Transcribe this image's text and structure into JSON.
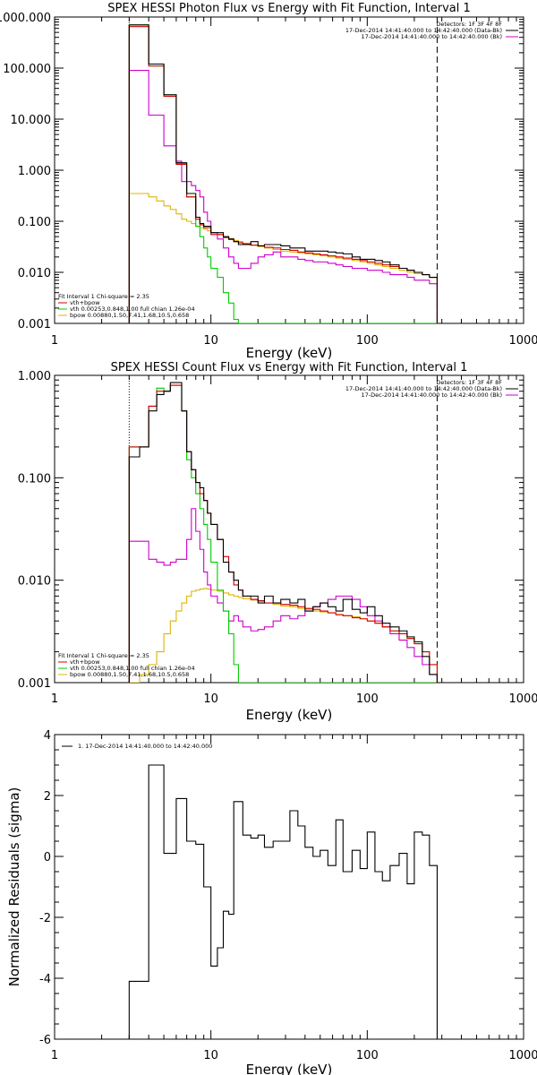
{
  "colors": {
    "total": "#000000",
    "model": "#d00000",
    "vth": "#00cc00",
    "bpow": "#e0b400",
    "bk": "#cc00cc"
  },
  "chart_data": [
    {
      "type": "line",
      "title": "SPEX HESSI Photon Flux vs Energy with Fit Function, Interval 1",
      "xlabel": "Energy (keV)",
      "ylabel": "",
      "xscale": "log",
      "yscale": "log",
      "xlim": [
        1,
        1000
      ],
      "ylim": [
        0.001,
        1000
      ],
      "xticks": [
        "1",
        "10",
        "100",
        "1000"
      ],
      "yticks": [
        "0.001",
        "0.010",
        "0.100",
        "1.000",
        "10.000",
        "100.000",
        "1000.000"
      ],
      "legend_top_right": [
        "Detectors: 1F 3F 4F 8F",
        "17-Dec-2014 14:41:40.000 to 14:42:40.000 (Data-Bk)",
        "17-Dec-2014 14:41:40.000 to 14:42:40.000 (Bk)"
      ],
      "legend_bottom_left": [
        "Fit Interval 1   Chi-square = 2.35",
        "vth+bpow",
        "vth 0.00253,0.848,1.00  full chian 1.26e-04",
        "bpow 0.00880,1.50,7.41,1.68,10.5,0.658"
      ],
      "vlines": [
        3,
        280
      ],
      "edges": [
        3,
        3.5,
        4,
        4.5,
        5,
        5.5,
        6,
        6.5,
        7,
        7.5,
        8,
        8.5,
        9,
        9.5,
        10,
        11,
        12,
        13,
        14,
        15,
        16,
        18,
        20,
        22,
        25,
        28,
        32,
        36,
        40,
        45,
        50,
        56,
        63,
        70,
        80,
        90,
        100,
        112,
        125,
        140,
        160,
        180,
        200,
        225,
        250,
        280
      ],
      "series": [
        {
          "name": "17-Dec-2014 14:41:40.000 to 14:42:40.000 (Data-Bk)",
          "color": "#000000",
          "values": [
            700,
            700,
            120,
            120,
            30,
            30,
            1.4,
            1.4,
            0.35,
            0.35,
            0.12,
            0.09,
            0.08,
            0.08,
            0.06,
            0.06,
            0.05,
            0.045,
            0.04,
            0.035,
            0.035,
            0.04,
            0.033,
            0.035,
            0.035,
            0.033,
            0.03,
            0.03,
            0.026,
            0.026,
            0.026,
            0.025,
            0.024,
            0.023,
            0.02,
            0.018,
            0.018,
            0.017,
            0.016,
            0.014,
            0.012,
            0.011,
            0.01,
            0.009,
            0.008
          ]
        },
        {
          "name": "vth+bpow",
          "color": "#d00000",
          "values": [
            650,
            650,
            110,
            110,
            28,
            28,
            1.3,
            1.3,
            0.3,
            0.3,
            0.11,
            0.085,
            0.075,
            0.075,
            0.055,
            0.055,
            0.048,
            0.044,
            0.04,
            0.038,
            0.036,
            0.034,
            0.033,
            0.031,
            0.03,
            0.028,
            0.027,
            0.025,
            0.024,
            0.023,
            0.022,
            0.021,
            0.02,
            0.019,
            0.018,
            0.017,
            0.016,
            0.015,
            0.014,
            0.013,
            0.012,
            0.011,
            0.01,
            0.009,
            0.008
          ]
        },
        {
          "name": "vth",
          "color": "#00cc00",
          "values": [
            700,
            700,
            120,
            120,
            30,
            30,
            1.35,
            1.35,
            0.3,
            0.3,
            0.08,
            0.05,
            0.03,
            0.02,
            0.012,
            0.008,
            0.004,
            0.0025,
            0.0012,
            0.001,
            0.001,
            0.001,
            0.001,
            0.001,
            0.001,
            0.001,
            0.001,
            0.001,
            0.001,
            0.001,
            0.001,
            0.001,
            0.001,
            0.001,
            0.001,
            0.001,
            0.001,
            0.001,
            0.001,
            0.001,
            0.001,
            0.001,
            0.001,
            0.001,
            0.001
          ]
        },
        {
          "name": "bpow",
          "color": "#e0b400",
          "values": [
            0.35,
            0.35,
            0.3,
            0.25,
            0.2,
            0.17,
            0.14,
            0.11,
            0.1,
            0.09,
            0.08,
            0.075,
            0.07,
            0.065,
            0.06,
            0.055,
            0.05,
            0.046,
            0.042,
            0.04,
            0.037,
            0.034,
            0.032,
            0.03,
            0.028,
            0.026,
            0.025,
            0.024,
            0.023,
            0.022,
            0.021,
            0.02,
            0.019,
            0.018,
            0.017,
            0.016,
            0.015,
            0.014,
            0.013,
            0.012,
            0.011,
            0.01,
            0.0095,
            0.009,
            0.008
          ]
        },
        {
          "name": "17-Dec-2014 14:41:40.000 to 14:42:40.000 (Bk)",
          "color": "#cc00cc",
          "values": [
            90,
            90,
            12,
            12,
            3,
            3,
            1.5,
            0.6,
            0.6,
            0.5,
            0.4,
            0.3,
            0.15,
            0.1,
            0.06,
            0.045,
            0.03,
            0.02,
            0.015,
            0.012,
            0.012,
            0.015,
            0.02,
            0.022,
            0.025,
            0.02,
            0.02,
            0.018,
            0.017,
            0.016,
            0.016,
            0.015,
            0.014,
            0.013,
            0.012,
            0.012,
            0.011,
            0.011,
            0.01,
            0.009,
            0.009,
            0.008,
            0.007,
            0.007,
            0.006
          ]
        }
      ]
    },
    {
      "type": "line",
      "title": "SPEX HESSI Count Flux vs Energy with Fit Function, Interval 1",
      "xlabel": "Energy (keV)",
      "ylabel": "",
      "xscale": "log",
      "yscale": "log",
      "xlim": [
        1,
        1000
      ],
      "ylim": [
        0.001,
        1
      ],
      "xticks": [
        "1",
        "10",
        "100",
        "1000"
      ],
      "yticks": [
        "0.001",
        "0.010",
        "0.100",
        "1.000"
      ],
      "legend_top_right": [
        "Detectors: 1F 3F 4F 8F",
        "17-Dec-2014 14:41:40.000 to 14:42:40.000 (Data-Bk)",
        "17-Dec-2014 14:41:40.000 to 14:42:40.000 (Bk)"
      ],
      "legend_bottom_left": [
        "Fit Interval 1   Chi-square = 2.35",
        "vth+bpow",
        "vth 0.00253,0.848,1.00  full chian 1.26e-04",
        "bpow 0.00880,1.50,7.41,1.68,10.5,0.658"
      ],
      "vlines": [
        3,
        280
      ],
      "edges": [
        3,
        3.5,
        4,
        4.5,
        5,
        5.5,
        6,
        6.5,
        7,
        7.5,
        8,
        8.5,
        9,
        9.5,
        10,
        11,
        12,
        13,
        14,
        15,
        16,
        18,
        20,
        22,
        25,
        28,
        32,
        36,
        40,
        45,
        50,
        56,
        63,
        70,
        80,
        90,
        100,
        112,
        125,
        140,
        160,
        180,
        200,
        225,
        250,
        280
      ],
      "series": [
        {
          "name": "17-Dec-2014 14:41:40.000 to 14:42:40.000 (Data-Bk)",
          "color": "#000000",
          "values": [
            0.16,
            0.2,
            0.45,
            0.65,
            0.7,
            0.85,
            0.85,
            0.45,
            0.18,
            0.12,
            0.09,
            0.08,
            0.06,
            0.045,
            0.035,
            0.025,
            0.015,
            0.012,
            0.01,
            0.008,
            0.007,
            0.007,
            0.006,
            0.007,
            0.006,
            0.0065,
            0.006,
            0.0065,
            0.005,
            0.0055,
            0.006,
            0.0055,
            0.005,
            0.0065,
            0.0052,
            0.0048,
            0.0055,
            0.0045,
            0.0038,
            0.0035,
            0.0032,
            0.0028,
            0.0025,
            0.0018,
            0.0012
          ]
        },
        {
          "name": "vth+bpow",
          "color": "#d00000",
          "values": [
            0.2,
            0.2,
            0.5,
            0.7,
            0.7,
            0.8,
            0.8,
            0.45,
            0.18,
            0.12,
            0.09,
            0.07,
            0.06,
            0.045,
            0.035,
            0.025,
            0.017,
            0.012,
            0.009,
            0.008,
            0.007,
            0.0065,
            0.0063,
            0.006,
            0.006,
            0.0058,
            0.0057,
            0.0055,
            0.0053,
            0.0052,
            0.005,
            0.0048,
            0.0046,
            0.0045,
            0.0043,
            0.0042,
            0.004,
            0.0038,
            0.0035,
            0.0032,
            0.003,
            0.0027,
            0.0024,
            0.002,
            0.0015
          ]
        },
        {
          "name": "vth",
          "color": "#00cc00",
          "values": [
            0.2,
            0.2,
            0.5,
            0.75,
            0.7,
            0.8,
            0.8,
            0.45,
            0.15,
            0.1,
            0.07,
            0.05,
            0.035,
            0.025,
            0.015,
            0.008,
            0.005,
            0.003,
            0.0015,
            0.001,
            0.001,
            0.001,
            0.001,
            0.001,
            0.001,
            0.001,
            0.001,
            0.001,
            0.001,
            0.001,
            0.001,
            0.001,
            0.001,
            0.001,
            0.001,
            0.001,
            0.001,
            0.001,
            0.001,
            0.001,
            0.001,
            0.001,
            0.001,
            0.001,
            0.001
          ]
        },
        {
          "name": "bpow",
          "color": "#e0b400",
          "values": [
            0.001,
            0.0012,
            0.0015,
            0.002,
            0.003,
            0.004,
            0.005,
            0.006,
            0.007,
            0.0078,
            0.008,
            0.0082,
            0.0083,
            0.0082,
            0.008,
            0.0078,
            0.0075,
            0.0072,
            0.007,
            0.0068,
            0.0066,
            0.0064,
            0.0062,
            0.006,
            0.0058,
            0.0056,
            0.0055,
            0.0053,
            0.0052,
            0.005,
            0.0049,
            0.0048,
            0.0046,
            0.0045,
            0.0044,
            0.0042,
            0.004,
            0.0038,
            0.0035,
            0.0032,
            0.003,
            0.0027,
            0.0024,
            0.002,
            0.0015
          ]
        },
        {
          "name": "17-Dec-2014 14:41:40.000 to 14:42:40.000 (Bk)",
          "color": "#cc00cc",
          "values": [
            0.024,
            0.024,
            0.016,
            0.015,
            0.014,
            0.015,
            0.016,
            0.016,
            0.025,
            0.05,
            0.03,
            0.02,
            0.012,
            0.009,
            0.007,
            0.006,
            0.005,
            0.004,
            0.0045,
            0.004,
            0.0035,
            0.0032,
            0.0033,
            0.0035,
            0.004,
            0.0045,
            0.0042,
            0.0045,
            0.005,
            0.0055,
            0.006,
            0.0065,
            0.007,
            0.007,
            0.0065,
            0.0055,
            0.0045,
            0.004,
            0.0035,
            0.003,
            0.0026,
            0.0022,
            0.0018,
            0.0015,
            0.0012
          ]
        }
      ]
    },
    {
      "type": "line",
      "title": "",
      "xlabel": "Energy (keV)",
      "ylabel": "Normalized Residuals (sigma)",
      "xscale": "log",
      "yscale": "linear",
      "xlim": [
        1,
        1000
      ],
      "ylim": [
        -6,
        4
      ],
      "xticks": [
        "1",
        "10",
        "100",
        "1000"
      ],
      "yticks": [
        "-6",
        "-4",
        "-2",
        "0",
        "2",
        "4"
      ],
      "legend_top_left": [
        "1. 17-Dec-2014 14:41:40.000 to 14:42:40.000"
      ],
      "edges": [
        3,
        3.5,
        4,
        4.5,
        5,
        5.5,
        6,
        6.5,
        7,
        7.5,
        8,
        8.5,
        9,
        9.5,
        10,
        11,
        12,
        13,
        14,
        15,
        16,
        18,
        20,
        22,
        25,
        28,
        32,
        36,
        40,
        45,
        50,
        56,
        63,
        70,
        80,
        90,
        100,
        112,
        125,
        140,
        160,
        180,
        200,
        225,
        250,
        280
      ],
      "series": [
        {
          "name": "1. 17-Dec-2014 14:41:40.000 to 14:42:40.000",
          "color": "#000000",
          "values": [
            -4.1,
            -4.1,
            3.0,
            3.0,
            0.1,
            0.1,
            1.9,
            1.9,
            0.5,
            0.5,
            0.4,
            0.4,
            -1.0,
            -1.0,
            -3.6,
            -3.0,
            -1.8,
            -1.9,
            1.8,
            1.8,
            0.7,
            0.6,
            0.7,
            0.3,
            0.5,
            0.5,
            1.5,
            1.0,
            0.3,
            0.0,
            0.2,
            -0.3,
            1.2,
            -0.5,
            0.2,
            -0.4,
            0.8,
            -0.5,
            -0.8,
            -0.3,
            0.1,
            -0.9,
            0.8,
            0.7,
            -0.3
          ]
        }
      ]
    }
  ]
}
